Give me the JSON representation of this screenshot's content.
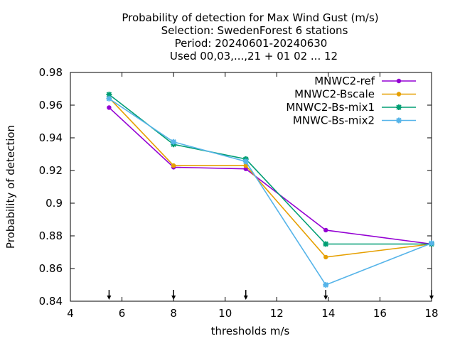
{
  "title_lines": [
    "Probability of detection  for Max Wind Gust (m/s)",
    "Selection: SwedenForest      6 stations",
    "Period: 20240601-20240630",
    "Used 00,03,...,21 + 01 02 ... 12"
  ],
  "chart_data": {
    "type": "line",
    "title": "Probability of detection  for Max Wind Gust (m/s)",
    "subtitle": [
      "Selection: SwedenForest      6 stations",
      "Period: 20240601-20240630",
      "Used 00,03,...,21 + 01 02 ... 12"
    ],
    "xlabel": "thresholds m/s",
    "ylabel": "Probability of detection",
    "xlim": [
      4,
      18
    ],
    "ylim": [
      0.84,
      0.98
    ],
    "x_ticks": [
      4,
      6,
      8,
      10,
      12,
      14,
      16,
      18
    ],
    "x_tick_labels": [
      "4",
      "6",
      "8",
      "10",
      "12",
      "14",
      "16",
      "18"
    ],
    "y_ticks": [
      0.84,
      0.86,
      0.88,
      0.9,
      0.92,
      0.94,
      0.96,
      0.98
    ],
    "y_tick_labels": [
      "0.84",
      "0.86",
      "0.88",
      "0.9",
      "0.92",
      "0.94",
      "0.96",
      "0.98"
    ],
    "grid": false,
    "legend_position": "top-right",
    "x": [
      5.5,
      8,
      10.8,
      13.9,
      18
    ],
    "threshold_arrows_x": [
      5.5,
      8,
      10.8,
      13.9,
      18
    ],
    "series": [
      {
        "name": "MNWC2-ref",
        "color": "#9400d3",
        "marker": "circle",
        "values": [
          0.9585,
          0.922,
          0.921,
          0.8835,
          0.875
        ]
      },
      {
        "name": "MNWC2-Bscale",
        "color": "#e69f00",
        "marker": "circle",
        "values": [
          0.9645,
          0.923,
          0.923,
          0.867,
          0.875
        ]
      },
      {
        "name": "MNWC2-Bs-mix1",
        "color": "#009e73",
        "marker": "star",
        "values": [
          0.9665,
          0.936,
          0.927,
          0.875,
          0.875
        ]
      },
      {
        "name": "MNWC-Bs-mix2",
        "color": "#56b4e9",
        "marker": "star",
        "values": [
          0.964,
          0.9375,
          0.9255,
          0.85,
          0.8755
        ]
      }
    ]
  }
}
